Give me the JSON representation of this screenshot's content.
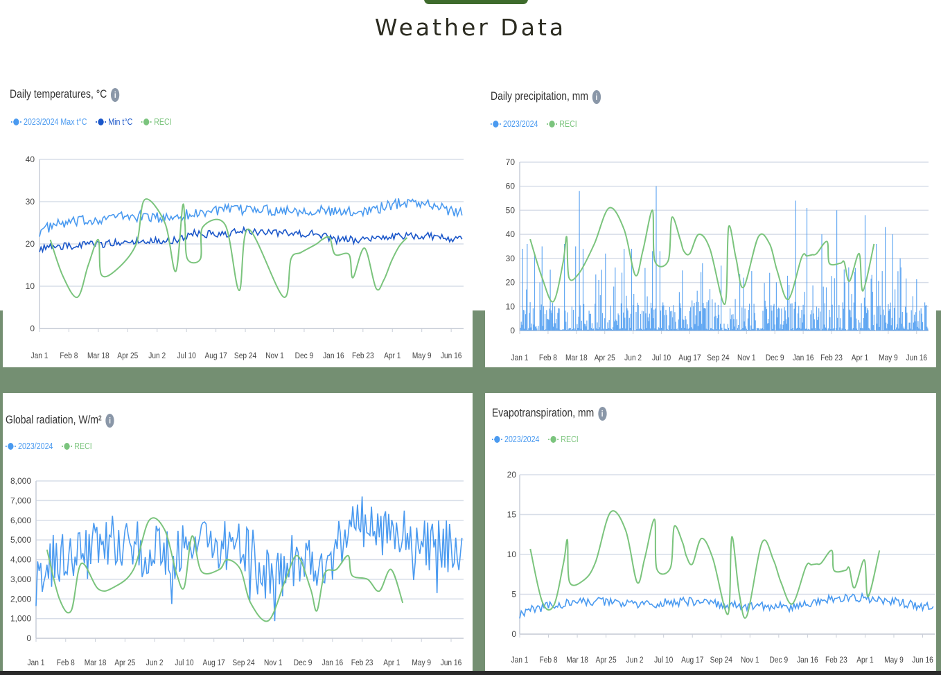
{
  "page": {
    "title": "Weather Data"
  },
  "x_tick_labels": [
    "Jan 1",
    "Feb 8",
    "Mar 18",
    "Apr 25",
    "Jun 2",
    "Jul 10",
    "Aug 17",
    "Sep 24",
    "Nov 1",
    "Dec 9",
    "Jan 16",
    "Feb 23",
    "Apr 1",
    "May 9",
    "Jun 16"
  ],
  "colors": {
    "series_blue": "#4a9af0",
    "series_darkblue": "#1a56c9",
    "reci_green": "#7bc47d",
    "grid": "#d7dde8",
    "panel_frame": "#748f72"
  },
  "panels": [
    {
      "title": "Daily temperatures, °C",
      "legend": [
        "2023/2024 Max t°C",
        "Min t°C",
        "RECI"
      ]
    },
    {
      "title": "Daily precipitation, mm",
      "legend": [
        "2023/2024",
        "RECI"
      ]
    },
    {
      "title": "Global radiation, W/m²",
      "legend": [
        "2023/2024",
        "RECI"
      ]
    },
    {
      "title": "Evapotranspiration, mm",
      "legend": [
        "2023/2024",
        "RECI"
      ]
    }
  ],
  "chart_data": [
    {
      "type": "line",
      "title": "Daily temperatures, °C",
      "x_range": [
        "Jan 1",
        "Jul 1"
      ],
      "ylim": [
        0,
        40
      ],
      "yticks": [
        0,
        10,
        20,
        30,
        40
      ],
      "y_tick_labels": [
        "0",
        "10",
        "20",
        "30",
        "40"
      ],
      "series": [
        {
          "name": "2023/2024 Max t°C",
          "color": "#4a9af0",
          "mark": "line",
          "x": [
            0,
            20,
            40,
            60,
            80,
            100,
            120,
            140,
            160,
            180,
            200,
            220,
            240,
            260,
            280,
            300,
            320,
            340,
            360,
            380,
            400,
            420,
            440,
            460,
            480,
            500,
            520,
            540
          ],
          "y": [
            23,
            24.5,
            25,
            25.5,
            26,
            26.5,
            26.5,
            26.5,
            26,
            26.8,
            27,
            28,
            28,
            28,
            28.5,
            28,
            28,
            28,
            28,
            27.5,
            27.5,
            28,
            28.5,
            29.5,
            30,
            29.5,
            28.5,
            27.5
          ],
          "noise": 1.3
        },
        {
          "name": "Min t°C",
          "color": "#1a56c9",
          "mark": "line",
          "x": [
            0,
            20,
            40,
            60,
            80,
            100,
            120,
            140,
            160,
            180,
            200,
            220,
            240,
            260,
            280,
            300,
            320,
            340,
            360,
            380,
            400,
            420,
            440,
            460,
            480,
            500,
            520,
            540
          ],
          "y": [
            19,
            19.3,
            19.5,
            19.8,
            20,
            20.3,
            20.5,
            21,
            20.8,
            21,
            22.5,
            22.3,
            22.3,
            23,
            23,
            22.5,
            22.5,
            22.5,
            22.5,
            21,
            21,
            21,
            21.5,
            22,
            22,
            22,
            21.5,
            21
          ],
          "noise": 0.9
        },
        {
          "name": "RECI",
          "color": "#7bc47d",
          "mark": "smooth",
          "x": [
            14,
            30,
            49,
            63,
            76,
            80,
            100,
            125,
            136,
            162,
            176,
            185,
            188,
            191,
            208,
            211,
            240,
            258,
            270,
            315,
            325,
            338,
            358,
            365,
            375,
            382,
            400,
            405,
            420,
            435,
            445,
            455,
            465,
            475
          ],
          "y": [
            21,
            12.5,
            7.4,
            15,
            21,
            12.7,
            14,
            20,
            30.5,
            25,
            13.5,
            29,
            24.5,
            16.5,
            16.5,
            24,
            24.5,
            9,
            23.5,
            7.5,
            16.5,
            18,
            20,
            21,
            21.5,
            17.5,
            17.5,
            12,
            19,
            9.5,
            11.5,
            16,
            19.5,
            21.5
          ]
        }
      ]
    },
    {
      "type": "bar",
      "title": "Daily precipitation, mm",
      "x_range": [
        "Jan 1",
        "Jul 1"
      ],
      "ylim": [
        0,
        70
      ],
      "yticks": [
        0,
        10,
        20,
        30,
        40,
        50,
        60,
        70
      ],
      "y_tick_labels": [
        "0",
        "10",
        "20",
        "30",
        "40",
        "50",
        "60",
        "70"
      ],
      "series": [
        {
          "name": "2023/2024",
          "color": "#4a9af0",
          "mark": "bars",
          "peaks": [
            [
              4,
              34
            ],
            [
              10,
              36
            ],
            [
              20,
              32
            ],
            [
              30,
              35
            ],
            [
              60,
              36
            ],
            [
              75,
              35
            ],
            [
              80,
              58
            ],
            [
              85,
              34
            ],
            [
              115,
              32
            ],
            [
              140,
              34
            ],
            [
              150,
              34
            ],
            [
              168,
              26
            ],
            [
              178,
              33
            ],
            [
              183,
              60
            ],
            [
              188,
              33
            ],
            [
              218,
              25
            ],
            [
              245,
              28
            ],
            [
              270,
              27
            ],
            [
              300,
              22
            ],
            [
              335,
              24
            ],
            [
              361,
              19
            ],
            [
              370,
              54
            ],
            [
              385,
              51
            ],
            [
              405,
              40
            ],
            [
              425,
              50
            ],
            [
              450,
              26
            ],
            [
              463,
              48
            ],
            [
              478,
              36
            ],
            [
              490,
              43
            ],
            [
              500,
              40
            ],
            [
              510,
              30
            ]
          ],
          "typical_max": 12
        },
        {
          "name": "RECI",
          "color": "#7bc47d",
          "mark": "smooth",
          "x": [
            14,
            30,
            45,
            58,
            63,
            66,
            80,
            100,
            120,
            140,
            155,
            165,
            178,
            181,
            199,
            204,
            215,
            220,
            228,
            240,
            255,
            275,
            280,
            290,
            300,
            320,
            335,
            345,
            360,
            378,
            385,
            392,
            398,
            412,
            415,
            430,
            435,
            442,
            455,
            460,
            475
          ],
          "y": [
            38,
            22,
            12,
            28,
            39,
            22,
            24,
            36,
            51,
            42,
            23,
            33,
            50,
            29,
            29,
            47,
            38,
            33,
            32,
            40,
            34,
            11,
            43,
            30,
            18,
            39,
            36,
            25,
            13,
            30.5,
            31,
            31.5,
            32,
            37,
            28,
            28,
            28.5,
            20.5,
            32,
            16.5,
            36
          ]
        }
      ]
    },
    {
      "type": "line",
      "title": "Global radiation, W/m²",
      "x_range": [
        "Jan 1",
        "Jul 1"
      ],
      "ylim": [
        0,
        8000
      ],
      "yticks": [
        0,
        1000,
        2000,
        3000,
        4000,
        5000,
        6000,
        7000,
        8000
      ],
      "y_tick_labels": [
        "0",
        "1,000",
        "2,000",
        "3,000",
        "4,000",
        "5,000",
        "6,000",
        "7,000",
        "8,000"
      ],
      "series": [
        {
          "name": "2023/2024",
          "color": "#4a9af0",
          "mark": "line",
          "x": [
            0,
            20,
            40,
            60,
            80,
            100,
            120,
            140,
            160,
            180,
            200,
            220,
            240,
            260,
            280,
            300,
            320,
            340,
            360,
            380,
            400,
            420,
            440,
            460,
            480,
            500,
            520,
            540
          ],
          "y": [
            3500,
            4000,
            4200,
            4600,
            5200,
            5000,
            4800,
            4600,
            4500,
            4400,
            4800,
            5000,
            4800,
            4500,
            4300,
            4200,
            4000,
            3900,
            3800,
            4200,
            5600,
            5900,
            5800,
            5600,
            5000,
            4800,
            4600,
            4800
          ],
          "noise": 1400
        },
        {
          "name": "RECI",
          "color": "#7bc47d",
          "mark": "smooth",
          "x": [
            14,
            30,
            45,
            58,
            80,
            100,
            125,
            145,
            165,
            180,
            190,
            200,
            212,
            235,
            245,
            262,
            275,
            298,
            320,
            335,
            352,
            360,
            370,
            385,
            400,
            405,
            425,
            440,
            455,
            470
          ],
          "y": [
            4500,
            2000,
            1400,
            3800,
            2500,
            2600,
            3500,
            6000,
            5500,
            3300,
            2600,
            5200,
            3400,
            3500,
            4000,
            3500,
            1800,
            900,
            3000,
            4200,
            2500,
            1400,
            3300,
            3500,
            4200,
            3200,
            3000,
            2400,
            3500,
            1800
          ]
        }
      ]
    },
    {
      "type": "line",
      "title": "Evapotranspiration, mm",
      "x_range": [
        "Jan 1",
        "Jul 1"
      ],
      "ylim": [
        0,
        20
      ],
      "yticks": [
        0,
        5,
        10,
        15,
        20
      ],
      "y_tick_labels": [
        "0",
        "5",
        "10",
        "15",
        "20"
      ],
      "series": [
        {
          "name": "2023/2024",
          "color": "#4a9af0",
          "mark": "line",
          "x": [
            0,
            20,
            40,
            60,
            80,
            100,
            120,
            140,
            160,
            180,
            200,
            220,
            240,
            260,
            280,
            300,
            320,
            340,
            360,
            380,
            400,
            420,
            440,
            460,
            480,
            500,
            520,
            540
          ],
          "y": [
            2.5,
            3.2,
            3.5,
            3.8,
            4,
            4.1,
            4,
            3.8,
            3.7,
            3.8,
            4,
            4.1,
            4,
            3.8,
            3.6,
            3.5,
            3.5,
            3.5,
            3.3,
            3.8,
            4.2,
            4.5,
            4.6,
            4.5,
            4.3,
            4,
            3.6,
            3.4
          ],
          "noise": 0.55
        },
        {
          "name": "RECI",
          "color": "#7bc47d",
          "mark": "smooth",
          "x": [
            14,
            30,
            45,
            58,
            63,
            66,
            85,
            100,
            120,
            140,
            155,
            165,
            178,
            181,
            199,
            204,
            215,
            220,
            228,
            240,
            255,
            275,
            280,
            290,
            300,
            320,
            335,
            345,
            360,
            378,
            385,
            392,
            398,
            412,
            415,
            430,
            435,
            442,
            455,
            460,
            475
          ],
          "y": [
            10.7,
            4,
            3.6,
            9,
            11.8,
            6.5,
            6.8,
            9,
            15.3,
            13,
            6.5,
            9.5,
            14.4,
            8.2,
            8.3,
            13.5,
            11.5,
            9.8,
            8.8,
            12,
            9.5,
            2.5,
            12.2,
            5,
            2.3,
            11.5,
            9.3,
            6.5,
            3.8,
            8.5,
            8.7,
            8.8,
            8.9,
            10.5,
            8,
            8,
            8.3,
            5.8,
            9.3,
            4.7,
            10.5
          ]
        }
      ]
    }
  ]
}
